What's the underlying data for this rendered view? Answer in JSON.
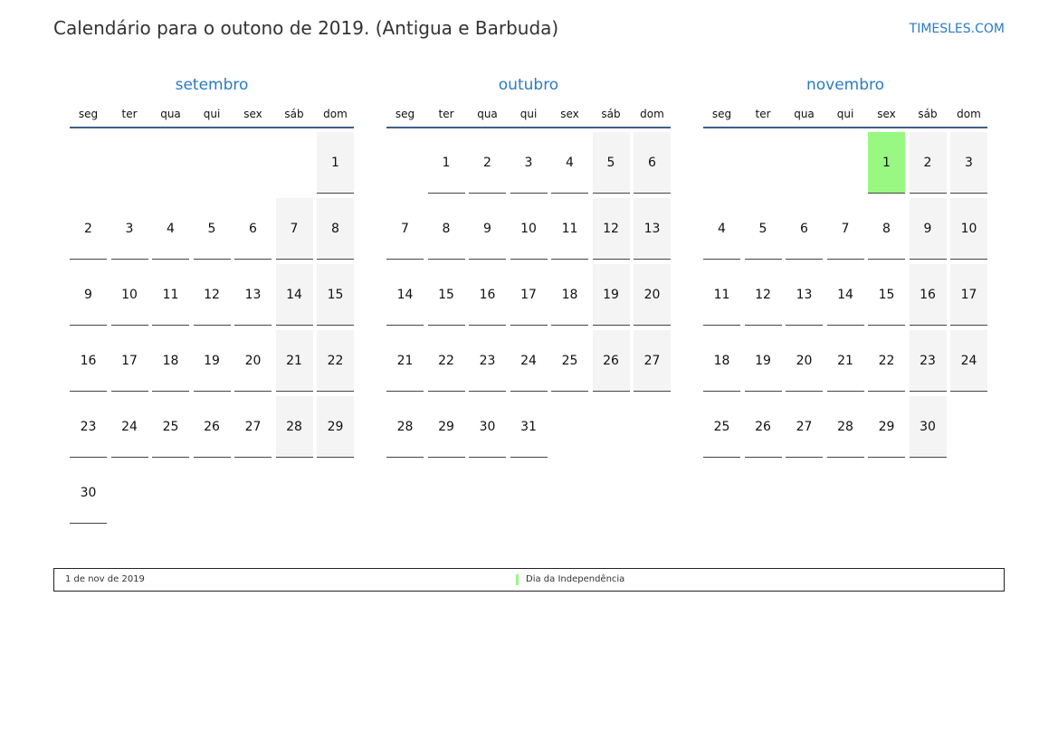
{
  "title": "Calendário para o outono de 2019. (Antigua e Barbuda)",
  "brand": "TIMESLES.COM",
  "weekdays": [
    "seg",
    "ter",
    "qua",
    "qui",
    "sex",
    "sáb",
    "dom"
  ],
  "colors": {
    "accent": "#2b7bc4",
    "weekend": "#f4f4f4",
    "holiday": "#99f882",
    "header_line": "#3f5f8a"
  },
  "months": [
    {
      "name": "setembro",
      "first_weekday_index": 6,
      "days": 30,
      "holidays": []
    },
    {
      "name": "outubro",
      "first_weekday_index": 1,
      "days": 31,
      "holidays": []
    },
    {
      "name": "novembro",
      "first_weekday_index": 4,
      "days": 30,
      "holidays": [
        1
      ]
    }
  ],
  "legend": {
    "date": "1 de nov de 2019",
    "holiday": "Dia da Independência"
  }
}
